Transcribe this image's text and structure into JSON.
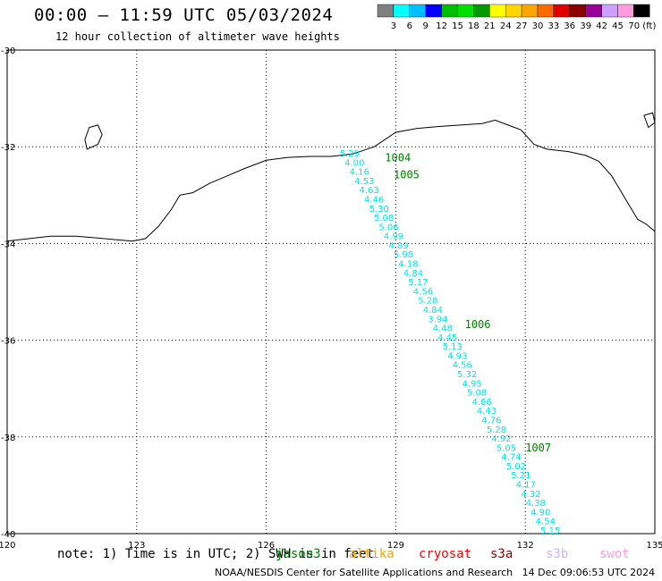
{
  "header": {
    "title": "00:00 – 11:59 UTC 05/03/2024",
    "subtitle": "12 hour collection of altimeter wave heights"
  },
  "colorbar": {
    "colors": [
      "#808080",
      "#00ffff",
      "#00bfff",
      "#0000ff",
      "#00bf00",
      "#00df00",
      "#009a00",
      "#ffff00",
      "#ffd700",
      "#ffa500",
      "#ff6a00",
      "#e00000",
      "#8b0000",
      "#9a009a",
      "#cca0ff",
      "#ff9ae0",
      "#000000"
    ],
    "labels": [
      "3",
      "6",
      "9",
      "12",
      "15",
      "18",
      "21",
      "24",
      "27",
      "30",
      "33",
      "36",
      "39",
      "42",
      "45",
      "70 (ft)"
    ]
  },
  "axes": {
    "x_ticks": [
      "120",
      "123",
      "126",
      "129",
      "132",
      "135"
    ],
    "y_ticks": [
      "-30",
      "-32",
      "-34",
      "-36",
      "-38",
      "-40"
    ]
  },
  "track": {
    "color": "#00e5e5",
    "labels": [
      "5.29",
      "4.00",
      "4.16",
      "4.53",
      "4.63",
      "4.46",
      "5.30",
      "5.08",
      "5.06",
      "4.99",
      "4.89",
      "5.98",
      "4.18",
      "4.84",
      "5.17",
      "4.56",
      "5.28",
      "4.84",
      "3.94",
      "4.48",
      "4.45",
      "5.13",
      "4.93",
      "4.56",
      "5.32",
      "4.95",
      "5.08",
      "4.66",
      "4.43",
      "4.76",
      "5.28",
      "4.92",
      "5.05",
      "4.74",
      "5.02",
      "5.21",
      "4.17",
      "4.32",
      "4.38",
      "4.90",
      "4.54",
      "5.15"
    ]
  },
  "time_labels": {
    "color": "#008000",
    "items": [
      {
        "text": "1004",
        "lon": 128.75,
        "lat": -32.3
      },
      {
        "text": "1005",
        "lon": 128.95,
        "lat": -32.65
      },
      {
        "text": "1006",
        "lon": 130.6,
        "lat": -35.75
      },
      {
        "text": "1007",
        "lon": 132.0,
        "lat": -38.3
      }
    ]
  },
  "legend": {
    "note": "note: 1) Time is in UTC; 2) SWH is in feet",
    "satellites": [
      {
        "name": "jason3",
        "color": "#008000"
      },
      {
        "name": "altika",
        "color": "#ffa500"
      },
      {
        "name": "cryosat",
        "color": "#ff0000"
      },
      {
        "name": "s3a",
        "color": "#8b0000"
      },
      {
        "name": "s3b",
        "color": "#c8b4ff"
      },
      {
        "name": "swot",
        "color": "#ff9ae0"
      }
    ]
  },
  "footer": {
    "credit": "NOAA/NESDIS Center for Satellite Applications and Research",
    "timestamp": "14 Dec 09:06:53 UTC 2024"
  }
}
